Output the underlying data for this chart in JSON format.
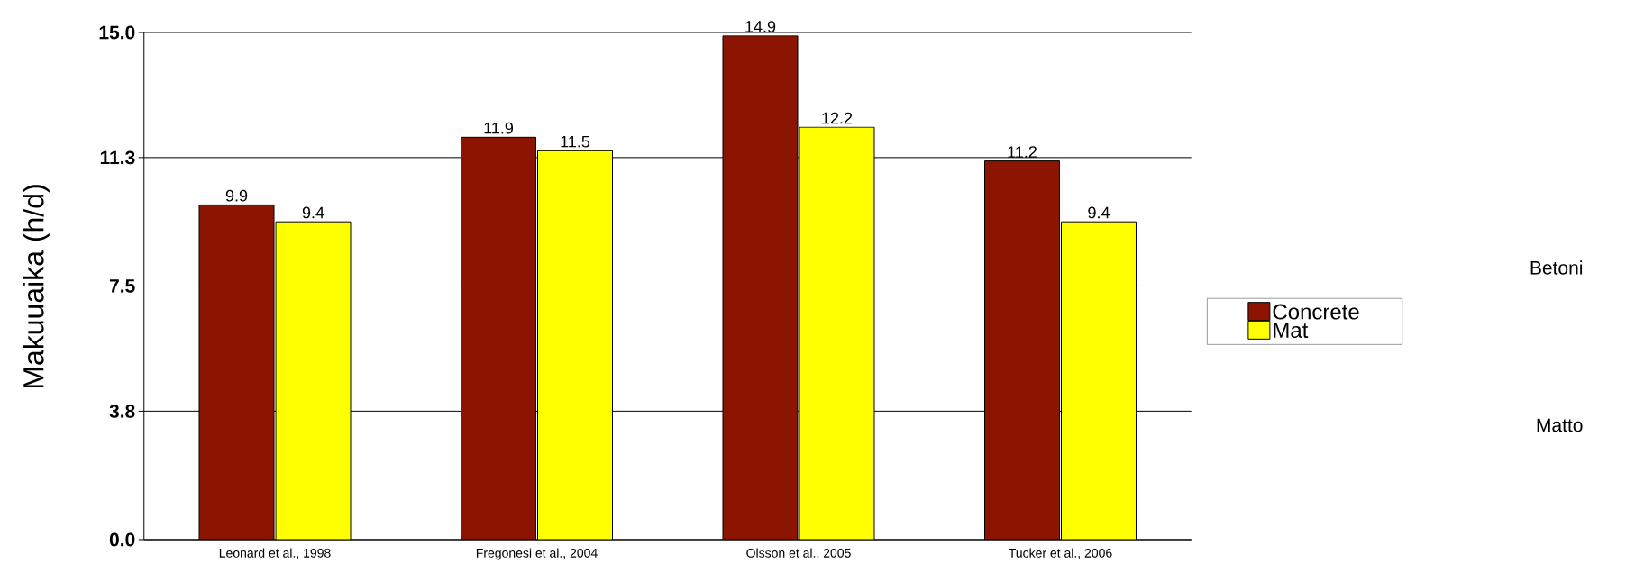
{
  "chart_data": {
    "type": "bar",
    "ylabel": "Makuuaika (h/d)",
    "categories": [
      "Leonard et al., 1998",
      "Fregonesi et al., 2004",
      "Olsson et al., 2005",
      "Tucker et al., 2006"
    ],
    "series": [
      {
        "name": "Concrete",
        "color": "#8b1500",
        "values": [
          9.9,
          11.9,
          14.9,
          11.2
        ]
      },
      {
        "name": "Mat",
        "color": "#ffff00",
        "values": [
          9.4,
          11.5,
          12.2,
          9.4
        ]
      }
    ],
    "ylim": [
      0,
      15
    ],
    "yticks": [
      {
        "value": 0,
        "label": "0.0"
      },
      3.8,
      7.5,
      11.3,
      {
        "value": 15,
        "label": "15.0"
      }
    ],
    "grid": "y",
    "legend": "right",
    "data_labels": true,
    "annotations": [
      "Betoni",
      "Matto"
    ]
  }
}
